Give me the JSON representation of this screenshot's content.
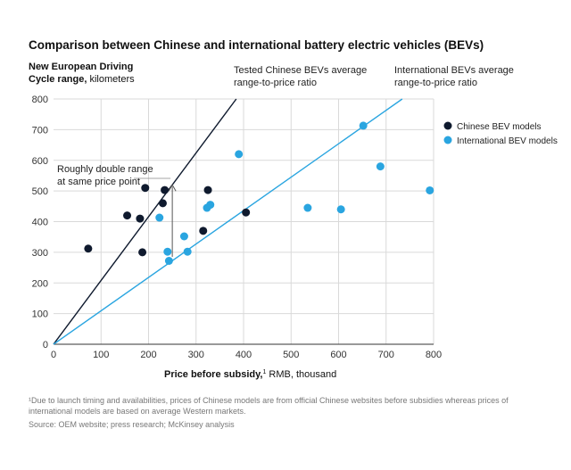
{
  "chart_data": {
    "type": "scatter",
    "title": "Comparison between Chinese and international battery electric vehicles (BEVs)",
    "ylabel_bold_1": "New European Driving",
    "ylabel_bold_2": "Cycle range,",
    "ylabel_rest": " kilometers",
    "xlabel_bold": "Price before subsidy,",
    "xlabel_sup": "1",
    "xlabel_rest": " RMB, thousand",
    "xlim": [
      0,
      800
    ],
    "ylim": [
      0,
      800
    ],
    "x_ticks": [
      0,
      100,
      200,
      300,
      400,
      500,
      600,
      700,
      800
    ],
    "y_ticks": [
      0,
      100,
      200,
      300,
      400,
      500,
      600,
      700,
      800
    ],
    "grid": true,
    "legend_position": "right",
    "series": [
      {
        "name": "Chinese BEV models",
        "color": "#0f1a2e",
        "points": [
          {
            "x": 73,
            "y": 312
          },
          {
            "x": 155,
            "y": 420
          },
          {
            "x": 182,
            "y": 410
          },
          {
            "x": 187,
            "y": 300
          },
          {
            "x": 193,
            "y": 510
          },
          {
            "x": 230,
            "y": 460
          },
          {
            "x": 234,
            "y": 503
          },
          {
            "x": 315,
            "y": 370
          },
          {
            "x": 325,
            "y": 503
          },
          {
            "x": 405,
            "y": 430
          }
        ]
      },
      {
        "name": "International BEV models",
        "color": "#2aa5e0",
        "points": [
          {
            "x": 223,
            "y": 413
          },
          {
            "x": 240,
            "y": 302
          },
          {
            "x": 243,
            "y": 272
          },
          {
            "x": 275,
            "y": 352
          },
          {
            "x": 282,
            "y": 302
          },
          {
            "x": 323,
            "y": 445
          },
          {
            "x": 330,
            "y": 455
          },
          {
            "x": 390,
            "y": 620
          },
          {
            "x": 535,
            "y": 445
          },
          {
            "x": 605,
            "y": 440
          },
          {
            "x": 652,
            "y": 713
          },
          {
            "x": 688,
            "y": 580
          },
          {
            "x": 792,
            "y": 502
          }
        ]
      }
    ],
    "trend_lines": [
      {
        "label_1": "Tested Chinese BEVs average",
        "label_2": "range-to-price ratio",
        "color": "#0f1a2e",
        "slope": 2.08
      },
      {
        "label_1": "International BEVs average",
        "label_2": "range-to-price ratio",
        "color": "#2aa5e0",
        "slope": 1.09
      }
    ],
    "annotation": {
      "line_1": "Roughly double range",
      "line_2": "at same price point",
      "x": 250,
      "y_from": 285,
      "y_to": 520
    },
    "footnote_1": "¹Due to launch timing and availabilities, prices of Chinese models are from official Chinese websites before subsidies whereas prices of",
    "footnote_2": "international models are based on average Western markets.",
    "source": "Source: OEM website; press research; McKinsey analysis"
  }
}
